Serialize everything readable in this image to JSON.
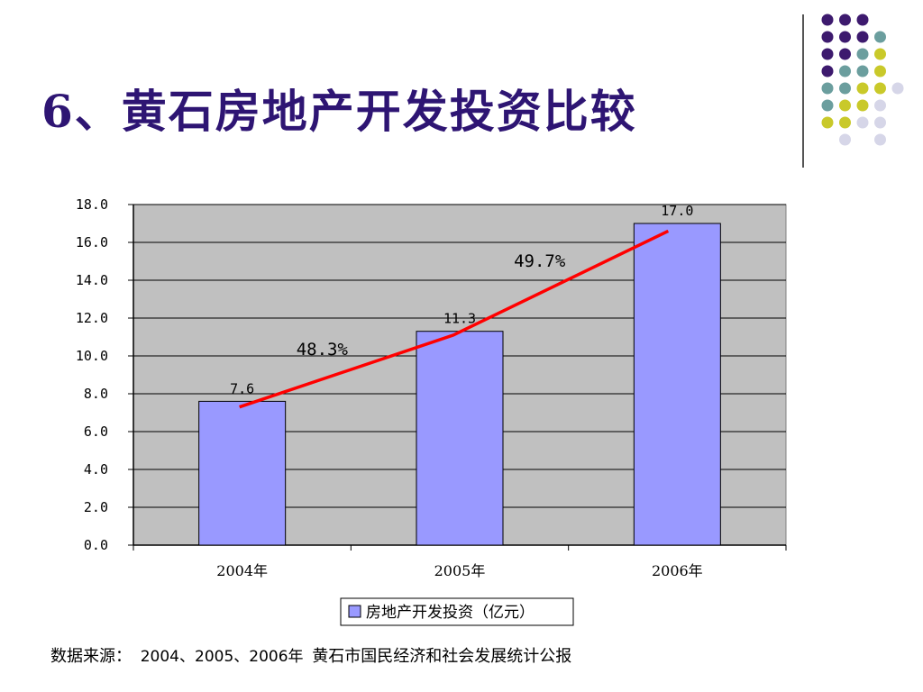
{
  "title": "6、黄石房地产开发投资比较",
  "decor": {
    "colors": [
      "#3d1a6e",
      "#6b9e9e",
      "#c9c92a",
      "#d6d6e8"
    ]
  },
  "chart_data": {
    "type": "bar",
    "categories": [
      "2004年",
      "2005年",
      "2006年"
    ],
    "series": [
      {
        "name": "房地产开发投资（亿元）",
        "values": [
          7.6,
          11.3,
          17.0
        ],
        "color": "#9999ff"
      }
    ],
    "data_labels": [
      "7.6",
      "11.3",
      "17.0"
    ],
    "growth_line": {
      "values": [
        7.3,
        11.1,
        16.6
      ],
      "color": "#ff0000"
    },
    "growth_labels": [
      "48.3%",
      "49.7%"
    ],
    "yticks": [
      "0.0",
      "2.0",
      "4.0",
      "6.0",
      "8.0",
      "10.0",
      "12.0",
      "14.0",
      "16.0",
      "18.0"
    ],
    "ylim": [
      0,
      18
    ],
    "plot_background": "#c0c0c0",
    "grid": true,
    "legend": {
      "position": "bottom",
      "label": "房地产开发投资（亿元）"
    }
  },
  "source": {
    "label": "数据来源：",
    "years": "2004、2005、2006年",
    "text": "黄石市国民经济和社会发展统计公报"
  }
}
